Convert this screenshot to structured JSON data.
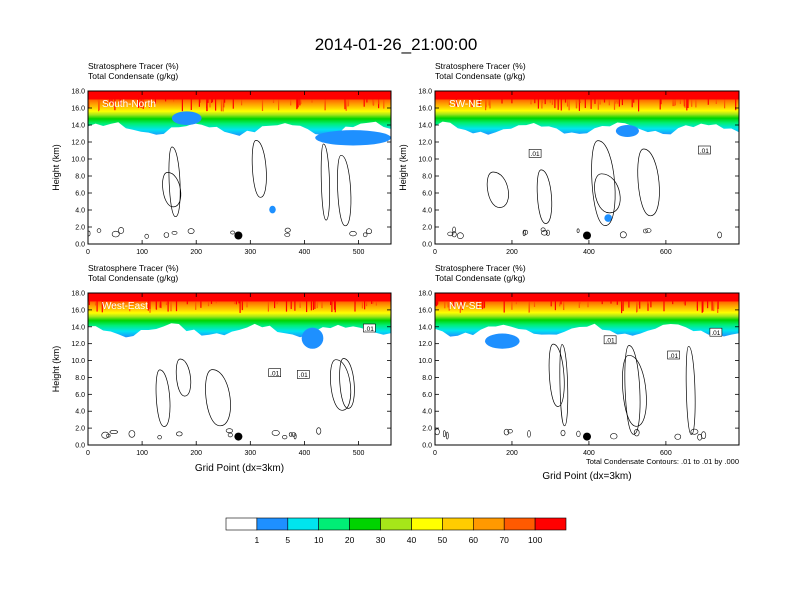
{
  "page_title": "2014-01-26_21:00:00",
  "chart_data": {
    "type": "heatmap",
    "panels": [
      {
        "id": "south-north",
        "title_line1": "Stratosphere Tracer   (%)",
        "title_line2": "Total Condensate   (g/kg)",
        "label": "South-North",
        "ylabel": "Height (km)",
        "xlabel": "",
        "xlim": [
          0,
          560
        ],
        "ylim": [
          0,
          18
        ],
        "xticks": [
          0,
          100,
          200,
          300,
          400,
          500
        ],
        "yticks": [
          "0.0",
          "2.0",
          "4.0",
          "6.0",
          "8.0",
          "10.0",
          "12.0",
          "14.0",
          "16.0",
          "18.0"
        ],
        "marker": {
          "x": 278,
          "y": 1.0
        },
        "contour_labels": [],
        "blue_patches": [
          {
            "x": 155,
            "y": 14.0,
            "w": 55,
            "h": 1.6
          },
          {
            "x": 420,
            "y": 11.6,
            "w": 140,
            "h": 1.8
          },
          {
            "x": 335,
            "y": 3.6,
            "w": 12,
            "h": 0.9
          }
        ]
      },
      {
        "id": "sw-ne",
        "title_line1": "Stratosphere Tracer   (%)",
        "title_line2": "Total Condensate   (g/kg)",
        "label": "SW-NE",
        "ylabel": "Height (km)",
        "xlabel": "",
        "xlim": [
          0,
          790
        ],
        "ylim": [
          0,
          18
        ],
        "xticks": [
          0,
          200,
          400,
          600
        ],
        "yticks": [
          "0.0",
          "2.0",
          "4.0",
          "6.0",
          "8.0",
          "10.0",
          "12.0",
          "14.0",
          "16.0",
          "18.0"
        ],
        "marker": {
          "x": 395,
          "y": 1.0
        },
        "contour_labels": [
          {
            "text": ".01",
            "x": 260,
            "y": 10.6
          },
          {
            "text": ".01",
            "x": 700,
            "y": 11.0
          }
        ],
        "blue_patches": [
          {
            "x": 470,
            "y": 12.6,
            "w": 60,
            "h": 1.4
          },
          {
            "x": 440,
            "y": 2.6,
            "w": 20,
            "h": 0.9
          }
        ]
      },
      {
        "id": "west-east",
        "title_line1": "Stratosphere Tracer   (%)",
        "title_line2": "Total Condensate   (g/kg)",
        "label": "West-East",
        "ylabel": "Height (km)",
        "xlabel": "Grid Point (dx=3km)",
        "xlim": [
          0,
          560
        ],
        "ylim": [
          0,
          18
        ],
        "xticks": [
          0,
          100,
          200,
          300,
          400,
          500
        ],
        "yticks": [
          "0.0",
          "2.0",
          "4.0",
          "6.0",
          "8.0",
          "10.0",
          "12.0",
          "14.0",
          "16.0",
          "18.0"
        ],
        "marker": {
          "x": 278,
          "y": 1.0
        },
        "contour_labels": [
          {
            "text": ".01",
            "x": 345,
            "y": 8.5
          },
          {
            "text": ".01",
            "x": 398,
            "y": 8.3
          },
          {
            "text": ".01",
            "x": 520,
            "y": 13.8
          }
        ],
        "blue_patches": [
          {
            "x": 395,
            "y": 11.4,
            "w": 40,
            "h": 2.5
          }
        ]
      },
      {
        "id": "nw-se",
        "title_line1": "Stratosphere Tracer   (%)",
        "title_line2": "Total Condensate   (g/kg)",
        "label": "NW-SE",
        "ylabel": "",
        "xlabel": "Grid Point (dx=3km)",
        "xlim": [
          0,
          790
        ],
        "ylim": [
          0,
          18
        ],
        "xticks": [
          0,
          200,
          400,
          600
        ],
        "yticks": [
          "0.0",
          "2.0",
          "4.0",
          "6.0",
          "8.0",
          "10.0",
          "12.0",
          "14.0",
          "16.0",
          "18.0"
        ],
        "marker": {
          "x": 395,
          "y": 1.0
        },
        "contour_labels": [
          {
            "text": ".01",
            "x": 455,
            "y": 12.4
          },
          {
            "text": ".01",
            "x": 620,
            "y": 10.6
          },
          {
            "text": ".01",
            "x": 730,
            "y": 13.3
          }
        ],
        "blue_patches": [
          {
            "x": 130,
            "y": 11.4,
            "w": 90,
            "h": 1.8
          }
        ]
      }
    ],
    "contour_info": "Total Condensate Contours: .01 to .01 by .000",
    "colorbar": {
      "labels": [
        "1",
        "5",
        "10",
        "20",
        "30",
        "40",
        "50",
        "60",
        "70",
        "100"
      ],
      "colors": [
        "#ffffff",
        "#1e90ff",
        "#00e5ee",
        "#00ee76",
        "#00d400",
        "#a6e619",
        "#ffff00",
        "#ffcc00",
        "#ff9900",
        "#ff5a00",
        "#ff0000"
      ]
    }
  }
}
